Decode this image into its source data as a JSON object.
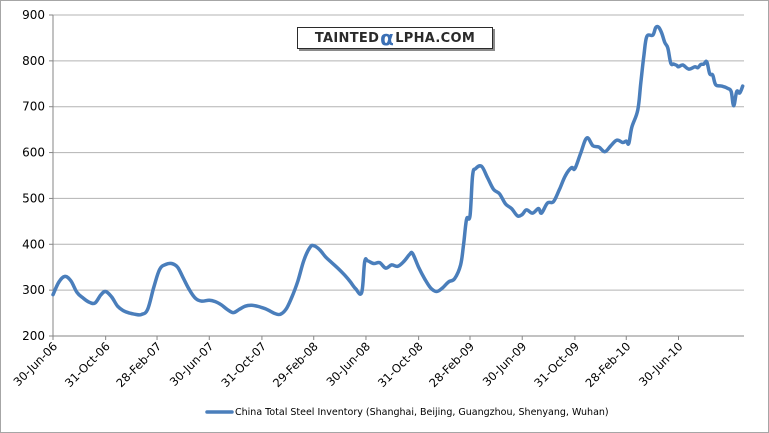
{
  "watermark": {
    "prefix": "TAINTED",
    "alpha": "α",
    "suffix": "LPHA.COM"
  },
  "colors": {
    "series": "#4a7ebb",
    "grid": "#b3b3b3",
    "axis": "#868686"
  },
  "chart_data": {
    "type": "line",
    "title": "",
    "xlabel": "",
    "ylabel": "",
    "ylim": [
      200,
      900
    ],
    "yticks": [
      200,
      300,
      400,
      500,
      600,
      700,
      800,
      900
    ],
    "grid": true,
    "legend_position": "bottom",
    "x_tick_labels": [
      "30-Jun-06",
      "31-Oct-06",
      "28-Feb-07",
      "30-Jun-07",
      "31-Oct-07",
      "29-Feb-08",
      "30-Jun-08",
      "31-Oct-08",
      "28-Feb-09",
      "30-Jun-09",
      "31-Oct-09",
      "28-Feb-10",
      "30-Jun-10"
    ],
    "series": [
      {
        "name": "China Total Steel Inventory (Shanghai, Beijing, Guangzhou, Shenyang, Wuhan)",
        "color": "#4a7ebb",
        "points": [
          [
            "2006-06-30",
            290
          ],
          [
            "2006-07-14",
            318
          ],
          [
            "2006-07-28",
            330
          ],
          [
            "2006-08-11",
            320
          ],
          [
            "2006-08-25",
            295
          ],
          [
            "2006-09-08",
            283
          ],
          [
            "2006-09-22",
            274
          ],
          [
            "2006-10-06",
            272
          ],
          [
            "2006-10-20",
            290
          ],
          [
            "2006-10-31",
            297
          ],
          [
            "2006-11-14",
            285
          ],
          [
            "2006-11-28",
            265
          ],
          [
            "2006-12-12",
            255
          ],
          [
            "2006-12-26",
            250
          ],
          [
            "2007-01-09",
            247
          ],
          [
            "2007-01-23",
            247
          ],
          [
            "2007-02-06",
            258
          ],
          [
            "2007-02-20",
            305
          ],
          [
            "2007-03-06",
            345
          ],
          [
            "2007-03-20",
            356
          ],
          [
            "2007-04-03",
            358
          ],
          [
            "2007-04-17",
            350
          ],
          [
            "2007-05-01",
            325
          ],
          [
            "2007-05-15",
            300
          ],
          [
            "2007-05-29",
            282
          ],
          [
            "2007-06-12",
            276
          ],
          [
            "2007-06-30",
            278
          ],
          [
            "2007-07-14",
            275
          ],
          [
            "2007-07-28",
            268
          ],
          [
            "2007-08-11",
            258
          ],
          [
            "2007-08-25",
            251
          ],
          [
            "2007-09-08",
            258
          ],
          [
            "2007-09-22",
            265
          ],
          [
            "2007-10-06",
            267
          ],
          [
            "2007-10-20",
            265
          ],
          [
            "2007-10-31",
            262
          ],
          [
            "2007-11-14",
            257
          ],
          [
            "2007-11-28",
            250
          ],
          [
            "2007-12-12",
            247
          ],
          [
            "2007-12-26",
            258
          ],
          [
            "2008-01-09",
            285
          ],
          [
            "2008-01-23",
            320
          ],
          [
            "2008-02-06",
            365
          ],
          [
            "2008-02-20",
            393
          ],
          [
            "2008-02-29",
            397
          ],
          [
            "2008-03-14",
            388
          ],
          [
            "2008-03-28",
            372
          ],
          [
            "2008-04-11",
            360
          ],
          [
            "2008-04-25",
            348
          ],
          [
            "2008-05-09",
            335
          ],
          [
            "2008-05-23",
            320
          ],
          [
            "2008-06-06",
            303
          ],
          [
            "2008-06-20",
            295
          ],
          [
            "2008-06-27",
            362
          ],
          [
            "2008-07-04",
            364
          ],
          [
            "2008-07-18",
            358
          ],
          [
            "2008-08-01",
            360
          ],
          [
            "2008-08-15",
            348
          ],
          [
            "2008-08-29",
            355
          ],
          [
            "2008-09-12",
            352
          ],
          [
            "2008-09-26",
            362
          ],
          [
            "2008-10-10",
            378
          ],
          [
            "2008-10-17",
            380
          ],
          [
            "2008-10-31",
            350
          ],
          [
            "2008-11-14",
            325
          ],
          [
            "2008-11-28",
            305
          ],
          [
            "2008-12-12",
            297
          ],
          [
            "2008-12-26",
            305
          ],
          [
            "2009-01-09",
            318
          ],
          [
            "2009-01-23",
            325
          ],
          [
            "2009-02-06",
            355
          ],
          [
            "2009-02-13",
            400
          ],
          [
            "2009-02-20",
            455
          ],
          [
            "2009-02-28",
            462
          ],
          [
            "2009-03-06",
            550
          ],
          [
            "2009-03-13",
            565
          ],
          [
            "2009-03-27",
            570
          ],
          [
            "2009-04-10",
            545
          ],
          [
            "2009-04-24",
            520
          ],
          [
            "2009-05-08",
            510
          ],
          [
            "2009-05-22",
            488
          ],
          [
            "2009-06-05",
            478
          ],
          [
            "2009-06-19",
            462
          ],
          [
            "2009-06-30",
            465
          ],
          [
            "2009-07-10",
            475
          ],
          [
            "2009-07-24",
            468
          ],
          [
            "2009-08-07",
            478
          ],
          [
            "2009-08-14",
            468
          ],
          [
            "2009-08-28",
            490
          ],
          [
            "2009-09-11",
            493
          ],
          [
            "2009-09-25",
            520
          ],
          [
            "2009-10-09",
            550
          ],
          [
            "2009-10-23",
            567
          ],
          [
            "2009-10-31",
            565
          ],
          [
            "2009-11-14",
            600
          ],
          [
            "2009-11-28",
            632
          ],
          [
            "2009-12-12",
            615
          ],
          [
            "2009-12-26",
            612
          ],
          [
            "2010-01-09",
            602
          ],
          [
            "2010-01-23",
            615
          ],
          [
            "2010-02-06",
            627
          ],
          [
            "2010-02-20",
            622
          ],
          [
            "2010-02-28",
            625
          ],
          [
            "2010-03-06",
            620
          ],
          [
            "2010-03-13",
            655
          ],
          [
            "2010-03-27",
            693
          ],
          [
            "2010-04-03",
            752
          ],
          [
            "2010-04-10",
            810
          ],
          [
            "2010-04-17",
            853
          ],
          [
            "2010-05-01",
            856
          ],
          [
            "2010-05-08",
            873
          ],
          [
            "2010-05-15",
            873
          ],
          [
            "2010-05-22",
            860
          ],
          [
            "2010-05-29",
            840
          ],
          [
            "2010-06-05",
            828
          ],
          [
            "2010-06-12",
            795
          ],
          [
            "2010-06-19",
            793
          ],
          [
            "2010-06-26",
            790
          ],
          [
            "2010-06-30",
            787
          ],
          [
            "2010-07-10",
            791
          ],
          [
            "2010-07-24",
            782
          ],
          [
            "2010-08-07",
            787
          ],
          [
            "2010-08-14",
            785
          ],
          [
            "2010-08-21",
            792
          ],
          [
            "2010-08-28",
            793
          ],
          [
            "2010-09-04",
            798
          ],
          [
            "2010-09-11",
            772
          ],
          [
            "2010-09-18",
            769
          ],
          [
            "2010-09-25",
            748
          ],
          [
            "2010-10-09",
            745
          ],
          [
            "2010-10-23",
            740
          ],
          [
            "2010-10-31",
            733
          ],
          [
            "2010-11-06",
            702
          ],
          [
            "2010-11-13",
            733
          ],
          [
            "2010-11-20",
            730
          ],
          [
            "2010-11-27",
            745
          ]
        ]
      }
    ]
  }
}
